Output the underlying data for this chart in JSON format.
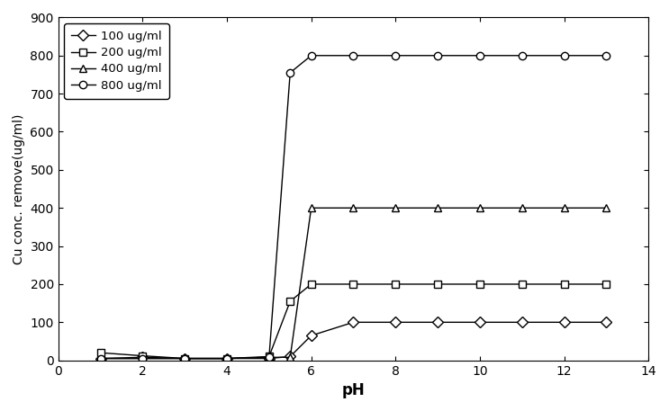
{
  "xlabel": "pH",
  "ylabel": "Cu conc. remove(ug/ml)",
  "xlim": [
    0,
    14
  ],
  "ylim": [
    0,
    900
  ],
  "xticks": [
    0,
    2,
    4,
    6,
    8,
    10,
    12,
    14
  ],
  "yticks": [
    0,
    100,
    200,
    300,
    400,
    500,
    600,
    700,
    800,
    900
  ],
  "series": [
    {
      "label": "100 ug/ml",
      "marker": "D",
      "x": [
        1,
        2,
        3,
        4,
        5,
        5.5,
        6,
        7,
        8,
        9,
        10,
        11,
        12,
        13
      ],
      "y": [
        5,
        8,
        5,
        5,
        5,
        10,
        65,
        100,
        100,
        100,
        100,
        100,
        100,
        100
      ]
    },
    {
      "label": "200 ug/ml",
      "marker": "s",
      "x": [
        1,
        2,
        3,
        4,
        5,
        5.5,
        6,
        7,
        8,
        9,
        10,
        11,
        12,
        13
      ],
      "y": [
        20,
        12,
        5,
        5,
        10,
        155,
        200,
        200,
        200,
        200,
        200,
        200,
        200,
        200
      ]
    },
    {
      "label": "400 ug/ml",
      "marker": "^",
      "x": [
        1,
        2,
        3,
        4,
        5,
        5.5,
        6,
        7,
        8,
        9,
        10,
        11,
        12,
        13
      ],
      "y": [
        5,
        5,
        5,
        5,
        8,
        8,
        400,
        400,
        400,
        400,
        400,
        400,
        400,
        400
      ]
    },
    {
      "label": "800 ug/ml",
      "marker": "o",
      "x": [
        1,
        2,
        3,
        4,
        5,
        5.5,
        6,
        7,
        8,
        9,
        10,
        11,
        12,
        13
      ],
      "y": [
        5,
        5,
        5,
        5,
        8,
        755,
        800,
        800,
        800,
        800,
        800,
        800,
        800,
        800
      ]
    }
  ],
  "marker_size": 6,
  "linewidth": 1.0,
  "legend_loc": "upper left",
  "background_color": "#ffffff"
}
